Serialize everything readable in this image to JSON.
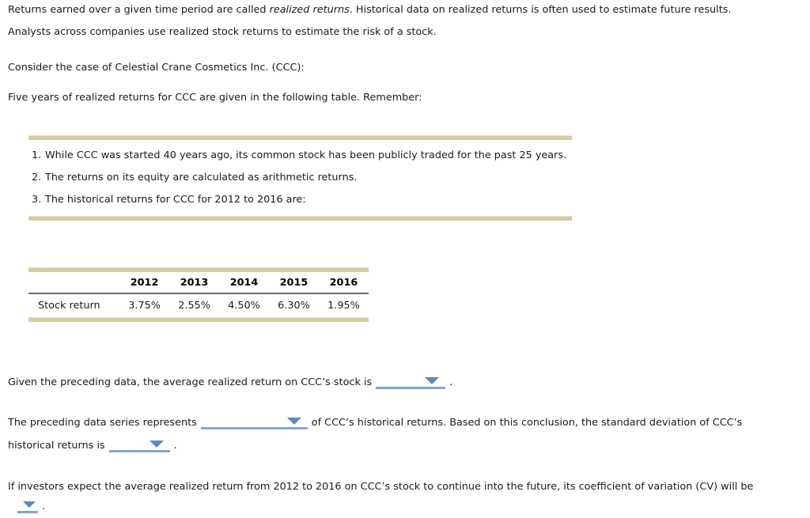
{
  "colors": {
    "accent_underline": "#7ea6d2",
    "dropdown_triangle": "#5d88ba",
    "tan_bar": "#d5cba2",
    "tan_bar_highlight": "#e8e2cf",
    "table_header_divider": "#6b6b6b",
    "text": "#1a1a1a",
    "background": "#ffffff"
  },
  "icons": {
    "dropdown": "chevron-down-icon"
  },
  "intro": {
    "before_italic": "Returns earned over a given time period are called ",
    "italic": "realized returns",
    "after_italic": ". Historical data on realized returns is often used to estimate future results.",
    "line2": "Analysts across companies use realized stock returns to estimate the risk of a stock."
  },
  "case_line": "Consider the case of Celestial Crane Cosmetics Inc. (CCC):",
  "table_intro": "Five years of realized returns for CCC are given in the following table. Remember:",
  "remember_items": [
    {
      "number": "1.",
      "text": "While CCC was started 40 years ago, its common stock has been publicly traded for the past 25 years."
    },
    {
      "number": "2.",
      "text": "The returns on its equity are calculated as arithmetic returns."
    },
    {
      "number": "3.",
      "text": "The historical returns for CCC for 2012 to 2016 are:"
    }
  ],
  "returns_table": {
    "row_label": "Stock return",
    "years": [
      "2012",
      "2013",
      "2014",
      "2015",
      "2016"
    ],
    "values": [
      "3.75%",
      "2.55%",
      "4.50%",
      "6.30%",
      "1.95%"
    ]
  },
  "question1": {
    "prefix": "Given the preceding data, the average realized return on CCC’s stock is",
    "suffix": "."
  },
  "question2": {
    "line1_prefix": "The preceding data series represents",
    "line1_suffix": "of CCC’s historical returns. Based on this conclusion, the standard deviation of CCC’s",
    "line2_prefix": "historical returns is",
    "line2_suffix": "."
  },
  "question3": {
    "text": "If investors expect the average realized return from 2012 to 2016 on CCC’s stock to continue into the future, its coefficient of variation (CV) will be",
    "suffix": "."
  }
}
